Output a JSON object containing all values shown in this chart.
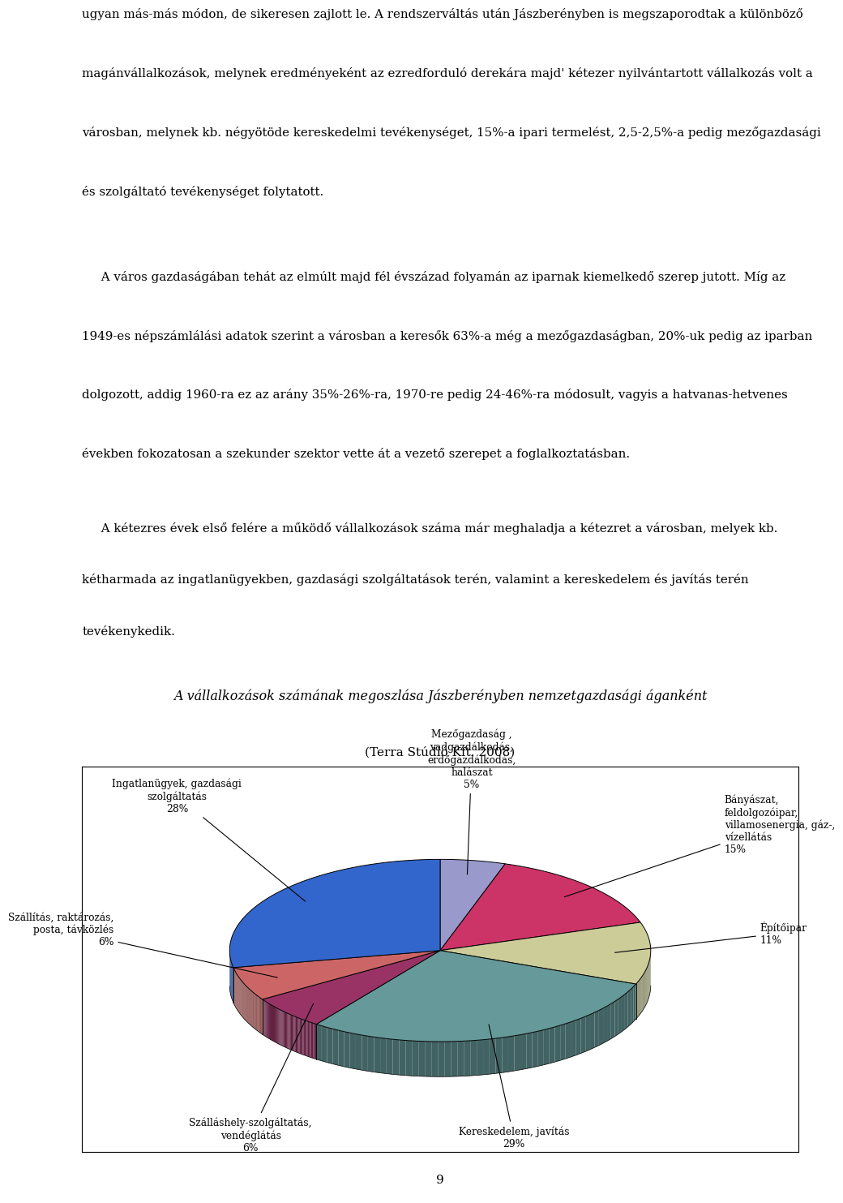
{
  "para1_lines": [
    "ugyan más-más módon, de sikeresen zajlott le. A rendszerváltás után Jászberényben is megszaporodtak a különböző",
    "magánvállalkozások, melynek eredményeként az ezredforduló derekára majd' kétezer nyilvántartott vállalkozás volt a",
    "városban, melynek kb. négyötöde kereskedelmi tevékenységet, 15%-a ipari termelést, 2,5-2,5%-a pedig mezőgazdasági",
    "és szolgáltató tevékenységet folytatott."
  ],
  "para2_lines": [
    "     A város gazdaságában tehát az elmúlt majd fél évszázad folyamán az iparnak kiemelkedő szerep jutott. Míg az",
    "1949-es népszámlálási adatok szerint a városban a keresők 63%-a még a mezőgazdaságban, 20%-uk pedig az iparban",
    "dolgozott, addig 1960-ra ez az arány 35%-26%-ra, 1970-re pedig 24-46%-ra módosult, vagyis a hatvanas-hetvenes",
    "években fokozatosan a szekunder szektor vette át a vezető szerepet a foglalkoztatásban."
  ],
  "para3_lines": [
    "     A kétezres évek első felére a működő vállalkozások száma már meghaladja a kétezret a városban, melyek kb.",
    "kétharmada az ingatlanügyekben, gazdasági szolgáltatások terén, valamint a kereskedelem és javítás terén",
    "tevékenykedik."
  ],
  "chart_title": "A vállalkozások számának megoszlása Jászberényben nemzetgazdasági áganként",
  "chart_subtitle": "(Terra Stúdió Kft. 2008)",
  "page_number": "9",
  "pie_slices": [
    {
      "label": "Mezőgazdaság ,\nvadgazdálkodás,\nerdőgazdálkodás,\nhalászat\n5%",
      "value": 5,
      "color": "#9999cc"
    },
    {
      "label": "Bányászat,\nfeldolgozóipar,\nvillamosenergia, gáz-,\nvízellátás\n15%",
      "value": 15,
      "color": "#cc3366"
    },
    {
      "label": "Építőipar\n11%",
      "value": 11,
      "color": "#cccc99"
    },
    {
      "label": "Kereskedelem, javítás\n29%",
      "value": 29,
      "color": "#669999"
    },
    {
      "label": "Szálláshely-szolgáltatás,\nvendéglátás\n6%",
      "value": 6,
      "color": "#993366"
    },
    {
      "label": "Szállítás, raktározás,\nposta, távközlés\n6%",
      "value": 6,
      "color": "#cc6666"
    },
    {
      "label": "Ingatlanügyek, gazdasági\nszolgáltatás\n28%",
      "value": 28,
      "color": "#3366cc"
    }
  ],
  "background_color": "#ffffff",
  "border_color": "#000000"
}
